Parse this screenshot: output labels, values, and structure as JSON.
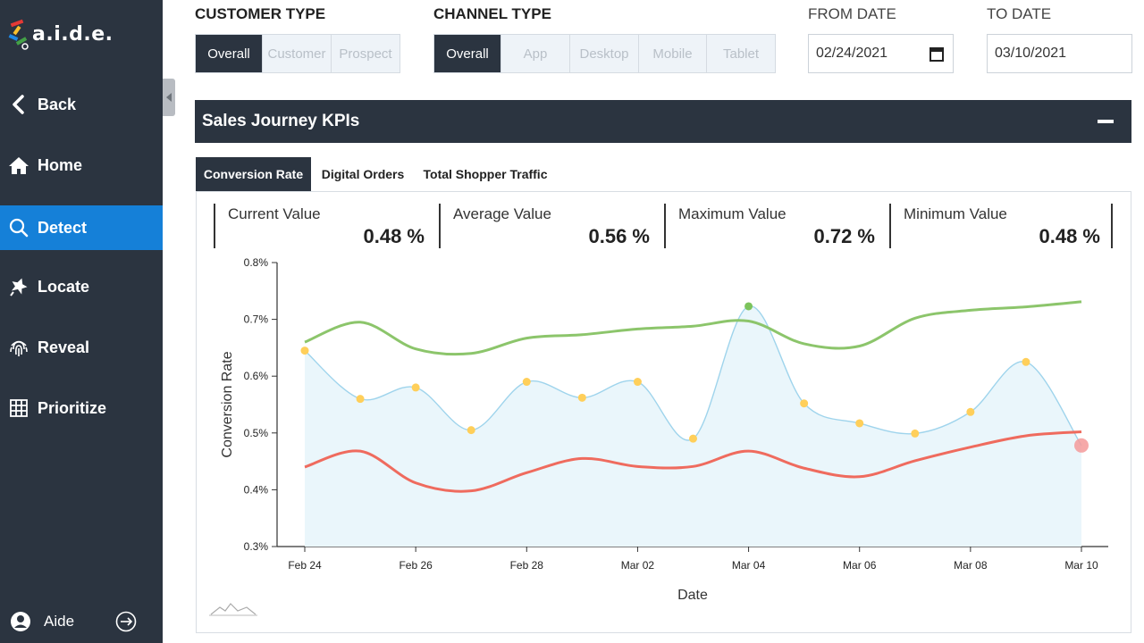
{
  "sidebar": {
    "logo_text": "a.i.d.e.",
    "back_label": "Back",
    "items": [
      {
        "label": "Home",
        "icon": "home-icon"
      },
      {
        "label": "Detect",
        "icon": "search-icon",
        "active": true
      },
      {
        "label": "Locate",
        "icon": "pin-icon"
      },
      {
        "label": "Reveal",
        "icon": "fingerprint-icon"
      },
      {
        "label": "Prioritize",
        "icon": "grid-icon"
      }
    ],
    "user_label": "Aide"
  },
  "filters": {
    "customer_type": {
      "label": "CUSTOMER TYPE",
      "options": [
        "Overall",
        "Customer",
        "Prospect"
      ],
      "selected": "Overall"
    },
    "channel_type": {
      "label": "CHANNEL TYPE",
      "options": [
        "Overall",
        "App",
        "Desktop",
        "Mobile",
        "Tablet"
      ],
      "selected": "Overall"
    },
    "from_date": {
      "label": "FROM DATE",
      "value": "02/24/2021"
    },
    "to_date": {
      "label": "TO DATE",
      "value": "03/10/2021"
    }
  },
  "panel": {
    "title": "Sales Journey KPIs",
    "tabs": [
      "Conversion Rate",
      "Digital Orders",
      "Total Shopper Traffic"
    ],
    "active_tab": "Conversion Rate",
    "kpis": [
      {
        "label": "Current Value",
        "value": "0.48 %"
      },
      {
        "label": "Average Value",
        "value": "0.56 %"
      },
      {
        "label": "Maximum Value",
        "value": "0.72 %"
      },
      {
        "label": "Minimum Value",
        "value": "0.48 %"
      }
    ]
  },
  "colors": {
    "sidebar_bg": "#2b3440",
    "active_blue": "#1580d8",
    "series_main": "#9fd4ec",
    "series_upper": "#8cc56b",
    "series_lower": "#ef6b5e",
    "point_normal": "#ffcf5a",
    "point_max": "#7cc35c",
    "point_current": "#f59a9a"
  },
  "chart_data": {
    "type": "line",
    "xlabel": "Date",
    "ylabel": "Conversion Rate",
    "ylim": [
      0.3,
      0.8
    ],
    "yticks": [
      "0.3%",
      "0.4%",
      "0.5%",
      "0.6%",
      "0.7%",
      "0.8%"
    ],
    "x": [
      "Feb 24",
      "Feb 25",
      "Feb 26",
      "Feb 27",
      "Feb 28",
      "Mar 01",
      "Mar 02",
      "Mar 03",
      "Mar 04",
      "Mar 05",
      "Mar 06",
      "Mar 07",
      "Mar 08",
      "Mar 09",
      "Mar 10"
    ],
    "xtick_labels": [
      "Feb 24",
      "Feb 26",
      "Feb 28",
      "Mar 02",
      "Mar 04",
      "Mar 06",
      "Mar 08",
      "Mar 10"
    ],
    "series": [
      {
        "values": [
          0.645,
          0.56,
          0.58,
          0.505,
          0.59,
          0.562,
          0.59,
          0.49,
          0.723,
          0.552,
          0.517,
          0.499,
          0.537,
          0.625,
          0.478
        ]
      },
      {
        "values": [
          0.66,
          0.695,
          0.648,
          0.64,
          0.667,
          0.673,
          0.683,
          0.688,
          0.697,
          0.657,
          0.653,
          0.702,
          0.716,
          0.722,
          0.731
        ]
      },
      {
        "values": [
          0.44,
          0.468,
          0.412,
          0.398,
          0.43,
          0.455,
          0.441,
          0.441,
          0.468,
          0.438,
          0.423,
          0.451,
          0.475,
          0.495,
          0.502
        ]
      }
    ],
    "grid": false
  }
}
